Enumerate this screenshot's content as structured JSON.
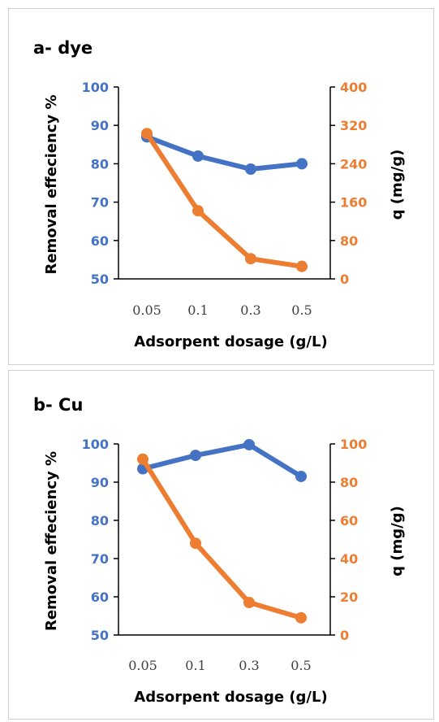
{
  "colors": {
    "removal": "#4472C4",
    "q": "#ED7D31",
    "axis": "#000000"
  },
  "chart_data": [
    {
      "type": "line",
      "title": "a- dye",
      "xlabel": "Adsorpent dosage (g/L)",
      "ylabel": "Removal effeciency %",
      "y2label": "q (mg/g)",
      "categories": [
        "0.05",
        "0.1",
        "0.3",
        "0.5"
      ],
      "ylim": [
        50,
        100
      ],
      "y2lim": [
        0,
        400
      ],
      "yticks": [
        "50",
        "60",
        "70",
        "80",
        "90",
        "100"
      ],
      "y2ticks": [
        "0",
        "80",
        "160",
        "240",
        "320",
        "400"
      ],
      "series": [
        {
          "axis": "left",
          "color": "#4472C4",
          "values": [
            87,
            82,
            78.6,
            80
          ]
        },
        {
          "axis": "right",
          "color": "#ED7D31",
          "values": [
            303,
            142,
            42,
            26
          ]
        }
      ]
    },
    {
      "type": "line",
      "title": "b- Cu",
      "xlabel": "Adsorpent dosage (g/L)",
      "ylabel": "Removal effeciency %",
      "y2label": "q (mg/g)",
      "categories": [
        "0.05",
        "0.1",
        "0.3",
        "0.5"
      ],
      "ylim": [
        50,
        100
      ],
      "y2lim": [
        0,
        100
      ],
      "yticks": [
        "50",
        "60",
        "70",
        "80",
        "90",
        "100"
      ],
      "y2ticks": [
        "0",
        "20",
        "40",
        "60",
        "80",
        "100"
      ],
      "series": [
        {
          "axis": "left",
          "color": "#4472C4",
          "values": [
            93.5,
            97,
            99.8,
            91.5
          ]
        },
        {
          "axis": "right",
          "color": "#ED7D31",
          "values": [
            92,
            48,
            17,
            9
          ]
        }
      ]
    }
  ]
}
